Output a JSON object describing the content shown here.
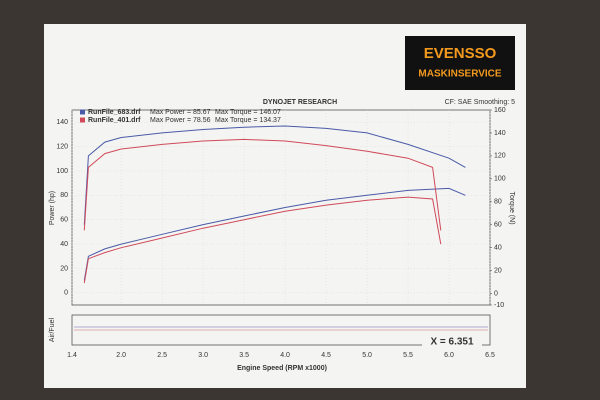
{
  "chart_data": {
    "type": "dyno",
    "title": "DYNOJET RESEARCH",
    "subtitle": "CF: SAE Smoothing: 5",
    "logo": [
      "EVENSSO",
      "MASKINSERVICE"
    ],
    "xlabel": "Engine Speed (RPM x1000)",
    "ylabel": "Power (hp)",
    "y2label": "Torque (N)",
    "af_label": "Air/Fuel",
    "cursor": "X = 6.351",
    "xlim": [
      1.4,
      6.5
    ],
    "xticks": [
      1.4,
      {
        "value": 2,
        "label": "2.0"
      },
      2.5,
      {
        "value": 3,
        "label": "3.0"
      },
      3.5,
      {
        "value": 4,
        "label": "4.0"
      },
      4.5,
      {
        "value": 5,
        "label": "5.0"
      },
      5.5,
      {
        "value": 6,
        "label": "6.0"
      },
      6.5
    ],
    "ylim": [
      -10,
      150
    ],
    "yticks": [
      0,
      20,
      40,
      60,
      80,
      100,
      120,
      140
    ],
    "y2lim": [
      -10,
      160
    ],
    "y2ticks": [
      -10,
      0,
      20,
      40,
      60,
      80,
      100,
      120,
      140,
      160
    ],
    "grid": true,
    "series": [
      {
        "name": "RunFile_683.drf",
        "color": "#4a5aa8",
        "max_power": "Max Power = 85.67",
        "max_torque": "Max Torque = 146.07",
        "x": [
          1.55,
          1.6,
          1.8,
          2.0,
          2.5,
          3.0,
          3.5,
          4.0,
          4.5,
          5.0,
          5.5,
          6.0,
          6.2
        ],
        "power": [
          10,
          30,
          36,
          40,
          48,
          56,
          63,
          70,
          76,
          80,
          84,
          85.67,
          80
        ],
        "torque": [
          60,
          120,
          132,
          136,
          140,
          143,
          145,
          146.07,
          144,
          140,
          130,
          118,
          110
        ]
      },
      {
        "name": "RunFile_401.drf",
        "color": "#d04a5a",
        "max_power": "Max Power = 78.56",
        "max_torque": "Max Torque = 134.37",
        "x": [
          1.55,
          1.6,
          1.8,
          2.0,
          2.5,
          3.0,
          3.5,
          4.0,
          4.5,
          5.0,
          5.5,
          5.8,
          5.9
        ],
        "power": [
          8,
          28,
          33,
          37,
          45,
          53,
          60,
          67,
          72,
          76,
          78.56,
          77,
          40
        ],
        "torque": [
          55,
          110,
          122,
          126,
          130,
          133,
          134.37,
          133,
          129,
          124,
          118,
          110,
          55
        ]
      }
    ]
  }
}
